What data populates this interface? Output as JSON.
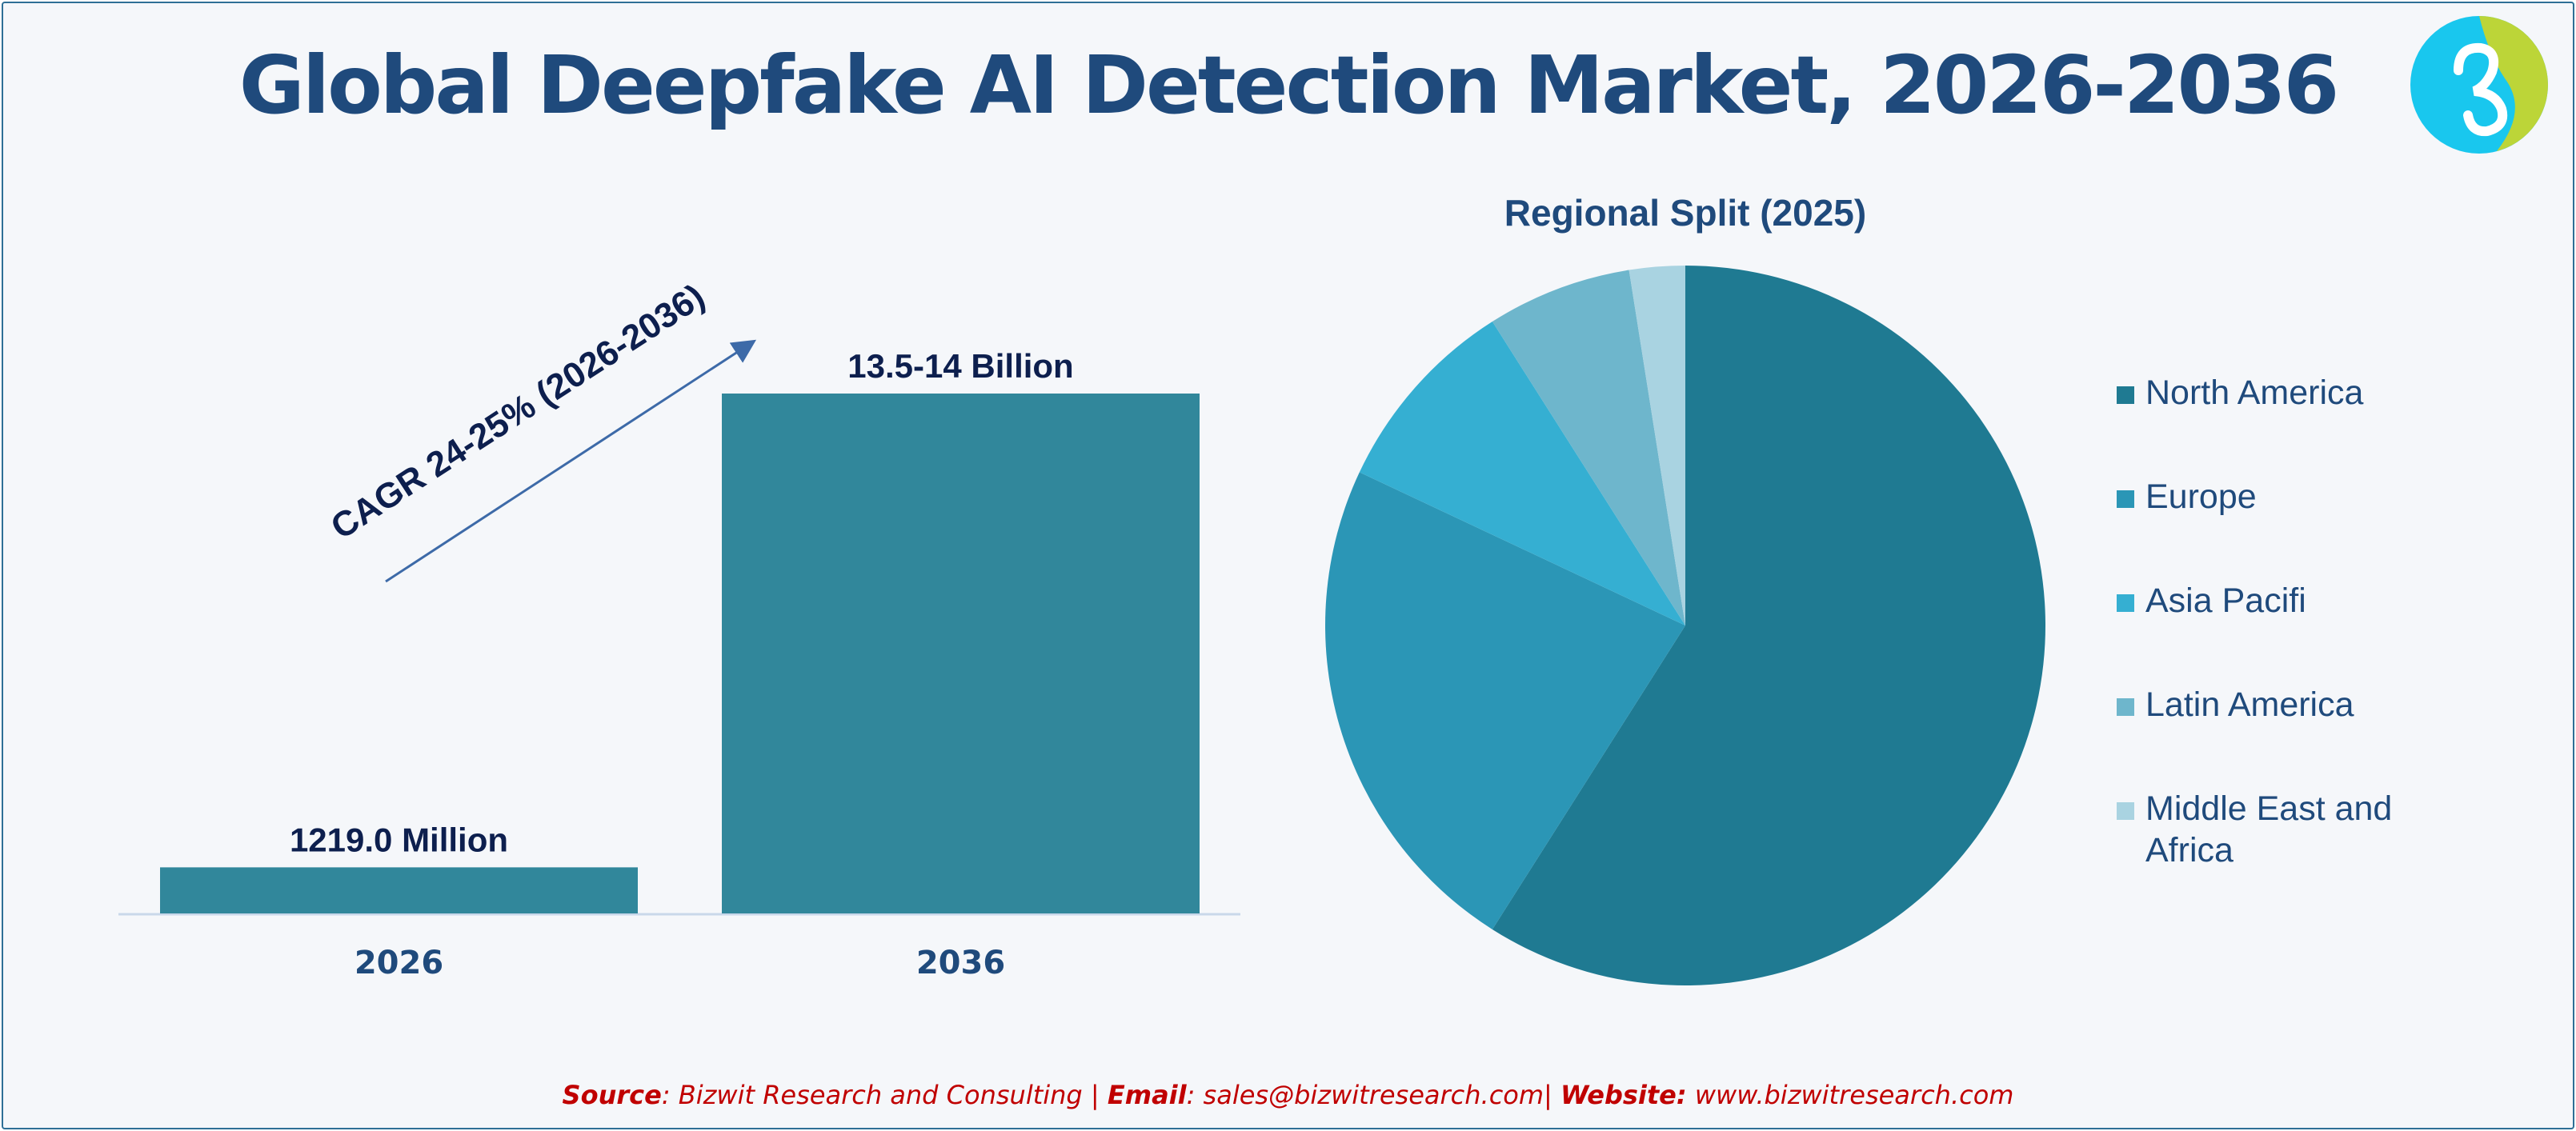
{
  "title": "Global Deepfake AI Detection Market, 2026-2036",
  "colors": {
    "title": "#1f4a7c",
    "bar": "#31879b",
    "label_dark": "#0d1f4e",
    "source_red": "#c00000",
    "border": "#2e6f96"
  },
  "logo": {
    "icon": "bizwit-logo-icon"
  },
  "chart_data": [
    {
      "type": "bar",
      "categories": [
        "2026",
        "2036"
      ],
      "values": [
        1.219,
        13.75
      ],
      "data_labels": [
        "1219.0 Million",
        "13.5-14 Billion"
      ],
      "annotation": "CAGR 24-25% (2026-2036)",
      "title": "",
      "xlabel": "",
      "ylabel": ""
    },
    {
      "type": "pie",
      "title": "Regional Split (2025)",
      "labels": [
        "North America",
        "Europe",
        "Asia Pacifi",
        "Latin America",
        "Middle East and Africa"
      ],
      "values": [
        59,
        23,
        9,
        6.5,
        2.5
      ],
      "colors": [
        "#1f7a92",
        "#2b96b6",
        "#35afd2",
        "#6eb6cc",
        "#a9d3e1"
      ],
      "legend_position": "right"
    }
  ],
  "source": {
    "source_label": "Source",
    "source_text": ": Bizwit Research and Consulting | ",
    "email_label": "Email",
    "email_text": ": sales@bizwitresearch.com| ",
    "website_label": "Website:",
    "website_text": " www.bizwitresearch.com"
  }
}
